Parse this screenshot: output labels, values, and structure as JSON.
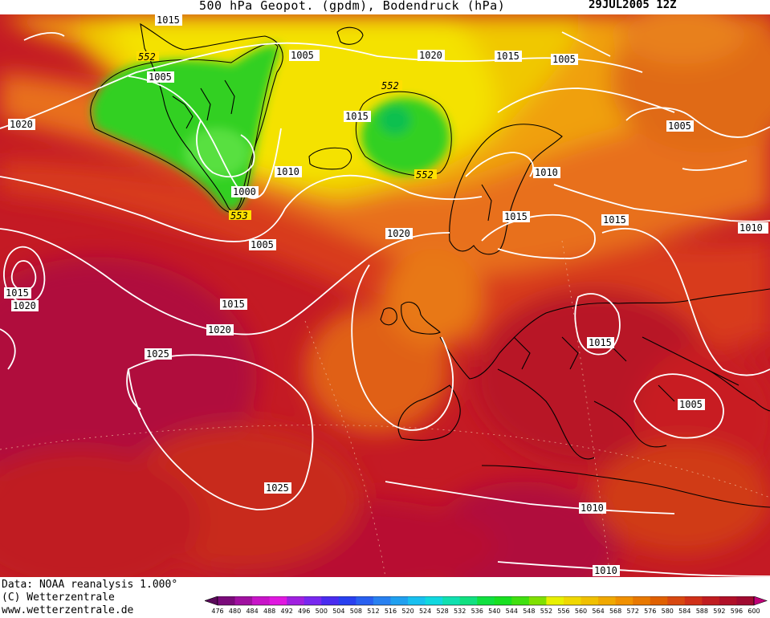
{
  "header": {
    "title": "500 hPa Geopot. (gpdm), Bodendruck (hPa)",
    "date": "29JUL2005 12Z"
  },
  "footer": {
    "data_source": "Data: NOAA reanalysis 1.000°",
    "copyright": "(C) Wetterzentrale",
    "website": "www.wetterzentrale.de"
  },
  "colors": {
    "background_field": "#c8102e",
    "isobar_line": "#ffffff",
    "coastline": "#000000"
  },
  "legend": {
    "levels": [
      476,
      480,
      484,
      488,
      492,
      496,
      500,
      504,
      508,
      512,
      516,
      520,
      524,
      528,
      532,
      536,
      540,
      544,
      548,
      552,
      556,
      560,
      564,
      568,
      572,
      576,
      580,
      584,
      588,
      592,
      596,
      600
    ],
    "colors": [
      "#5a0a5a",
      "#7a0a7a",
      "#a010a0",
      "#c814c8",
      "#e018e0",
      "#a020e0",
      "#7828f0",
      "#4a2cf0",
      "#2840f0",
      "#2860f0",
      "#2880f0",
      "#20a0f0",
      "#18c0f0",
      "#10d8e0",
      "#10e0b0",
      "#10e080",
      "#10e040",
      "#18e020",
      "#40e010",
      "#80e000",
      "#e8f000",
      "#f0d800",
      "#f0c000",
      "#f0a800",
      "#f09000",
      "#e87800",
      "#e06000",
      "#d84810",
      "#d03018",
      "#c01c20",
      "#b01028",
      "#a00a30",
      "#c00078"
    ]
  },
  "isobar_labels": [
    "1015",
    "1005",
    "1005",
    "1020",
    "1015",
    "1005",
    "1005",
    "1015",
    "1020",
    "1010",
    "1010",
    "1000",
    "1015",
    "1015",
    "1010",
    "1005",
    "1020",
    "1015",
    "1020",
    "1015",
    "1020",
    "1015",
    "1025",
    "1005",
    "1025",
    "1010",
    "1010"
  ],
  "height_labels": [
    "552",
    "552",
    "552",
    "553"
  ]
}
